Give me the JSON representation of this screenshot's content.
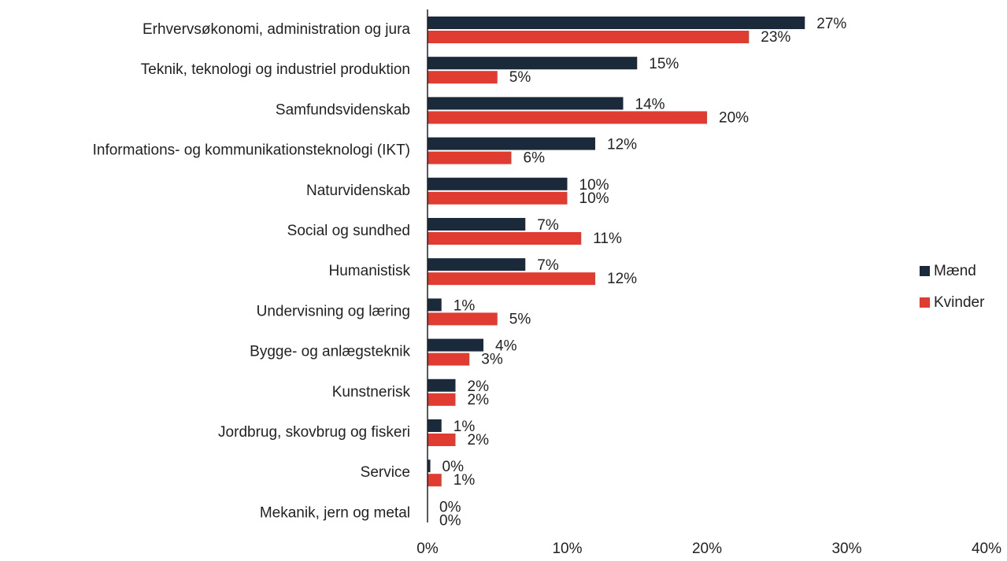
{
  "chart_data": {
    "type": "bar",
    "orientation": "horizontal",
    "categories": [
      "Erhvervsøkonomi, administration og jura",
      "Teknik, teknologi og industriel produktion",
      "Samfundsvidenskab",
      "Informations- og kommunikationsteknologi (IKT)",
      "Naturvidenskab",
      "Social og sundhed",
      "Humanistisk",
      "Undervisning og læring",
      "Bygge- og anlægsteknik",
      "Kunstnerisk",
      "Jordbrug, skovbrug og fiskeri",
      "Service",
      "Mekanik, jern og metal"
    ],
    "series": [
      {
        "name": "Mænd",
        "color": "#1b2a3a",
        "values": [
          27,
          15,
          14,
          12,
          10,
          7,
          7,
          1,
          4,
          2,
          1,
          0.2,
          0
        ],
        "value_labels": [
          "27%",
          "15%",
          "14%",
          "12%",
          "10%",
          "7%",
          "7%",
          "1%",
          "4%",
          "2%",
          "1%",
          "0%",
          "0%"
        ]
      },
      {
        "name": "Kvinder",
        "color": "#e03c31",
        "values": [
          23,
          5,
          20,
          6,
          10,
          11,
          12,
          5,
          3,
          2,
          2,
          1,
          0
        ],
        "value_labels": [
          "23%",
          "5%",
          "20%",
          "6%",
          "10%",
          "11%",
          "12%",
          "5%",
          "3%",
          "2%",
          "2%",
          "1%",
          "0%"
        ]
      }
    ],
    "xlim": [
      0,
      40
    ],
    "xticks": [
      {
        "value": 0,
        "label": "0%"
      },
      {
        "value": 10,
        "label": "10%"
      },
      {
        "value": 20,
        "label": "20%"
      },
      {
        "value": 30,
        "label": "30%"
      },
      {
        "value": 40,
        "label": "40%"
      }
    ],
    "legend": "right"
  }
}
